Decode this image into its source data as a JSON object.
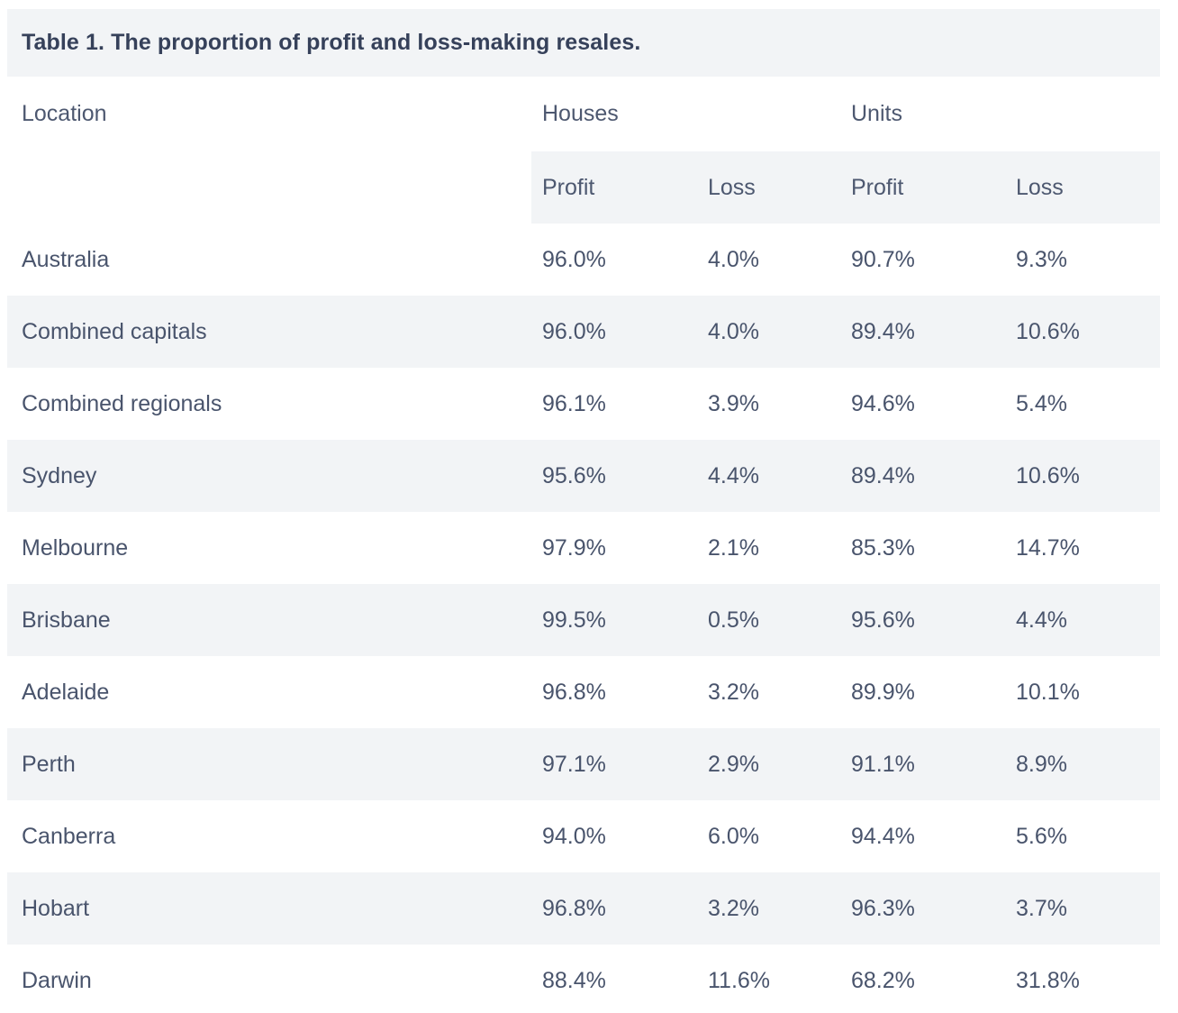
{
  "ui": {
    "title": "Table 1. The proportion of profit and loss-making resales.",
    "header": {
      "location": "Location",
      "houses": "Houses",
      "units": "Units"
    },
    "subheaders": [
      "Profit",
      "Loss",
      "Profit",
      "Loss"
    ],
    "colors": {
      "stripe_background": "#f2f4f6",
      "page_background": "#ffffff",
      "title_text": "#36415a",
      "header_text": "#4d5870",
      "data_text": "#49546c"
    }
  },
  "chart_data": {
    "type": "table",
    "title": "Table 1. The proportion of profit and loss-making resales.",
    "column_groups": [
      {
        "label": "Houses",
        "columns": [
          "Profit",
          "Loss"
        ]
      },
      {
        "label": "Units",
        "columns": [
          "Profit",
          "Loss"
        ]
      }
    ],
    "columns": [
      "Location",
      "Houses Profit",
      "Houses Loss",
      "Units Profit",
      "Units Loss"
    ],
    "rows": [
      [
        "Australia",
        "96.0%",
        "4.0%",
        "90.7%",
        "9.3%"
      ],
      [
        "Combined capitals",
        "96.0%",
        "4.0%",
        "89.4%",
        "10.6%"
      ],
      [
        "Combined regionals",
        "96.1%",
        "3.9%",
        "94.6%",
        "5.4%"
      ],
      [
        "Sydney",
        "95.6%",
        "4.4%",
        "89.4%",
        "10.6%"
      ],
      [
        "Melbourne",
        "97.9%",
        "2.1%",
        "85.3%",
        "14.7%"
      ],
      [
        "Brisbane",
        "99.5%",
        "0.5%",
        "95.6%",
        "4.4%"
      ],
      [
        "Adelaide",
        "96.8%",
        "3.2%",
        "89.9%",
        "10.1%"
      ],
      [
        "Perth",
        "97.1%",
        "2.9%",
        "91.1%",
        "8.9%"
      ],
      [
        "Canberra",
        "94.0%",
        "6.0%",
        "94.4%",
        "5.6%"
      ],
      [
        "Hobart",
        "96.8%",
        "3.2%",
        "96.3%",
        "3.7%"
      ],
      [
        "Darwin",
        "88.4%",
        "11.6%",
        "68.2%",
        "31.8%"
      ]
    ]
  }
}
